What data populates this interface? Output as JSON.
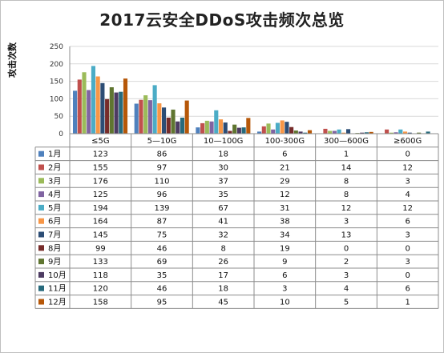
{
  "chart_data": {
    "type": "bar",
    "title": "2017云安全DDoS攻击频次总览",
    "ylabel": "攻击次数",
    "xlabel": "",
    "ylim": [
      0,
      250
    ],
    "yticks": [
      0,
      50,
      100,
      150,
      200,
      250
    ],
    "grid": true,
    "legend": "table-below",
    "categories": [
      "≤5G",
      "5—10G",
      "10—100G",
      "100-300G",
      "300—600G",
      "≥600G"
    ],
    "series": [
      {
        "name": "1月",
        "color": "#4f81bd",
        "values": [
          123,
          86,
          18,
          6,
          1,
          0
        ]
      },
      {
        "name": "2月",
        "color": "#c0504d",
        "values": [
          155,
          97,
          30,
          21,
          14,
          12
        ]
      },
      {
        "name": "3月",
        "color": "#9bbb59",
        "values": [
          176,
          110,
          37,
          29,
          8,
          3
        ]
      },
      {
        "name": "4月",
        "color": "#8064a2",
        "values": [
          125,
          96,
          35,
          12,
          8,
          4
        ]
      },
      {
        "name": "5月",
        "color": "#4bacc6",
        "values": [
          194,
          139,
          67,
          31,
          12,
          12
        ]
      },
      {
        "name": "6月",
        "color": "#f79646",
        "values": [
          164,
          87,
          41,
          38,
          3,
          6
        ]
      },
      {
        "name": "7月",
        "color": "#2c4d75",
        "values": [
          145,
          75,
          32,
          34,
          13,
          3
        ]
      },
      {
        "name": "8月",
        "color": "#772c2a",
        "values": [
          99,
          46,
          8,
          19,
          0,
          0
        ]
      },
      {
        "name": "9月",
        "color": "#5f7530",
        "values": [
          133,
          69,
          26,
          9,
          2,
          3
        ]
      },
      {
        "name": "10月",
        "color": "#4d3b62",
        "values": [
          118,
          35,
          17,
          6,
          3,
          0
        ]
      },
      {
        "name": "11月",
        "color": "#276a7c",
        "values": [
          120,
          46,
          18,
          3,
          4,
          6
        ]
      },
      {
        "name": "12月",
        "color": "#b65708",
        "values": [
          158,
          95,
          45,
          10,
          5,
          1
        ]
      }
    ]
  }
}
